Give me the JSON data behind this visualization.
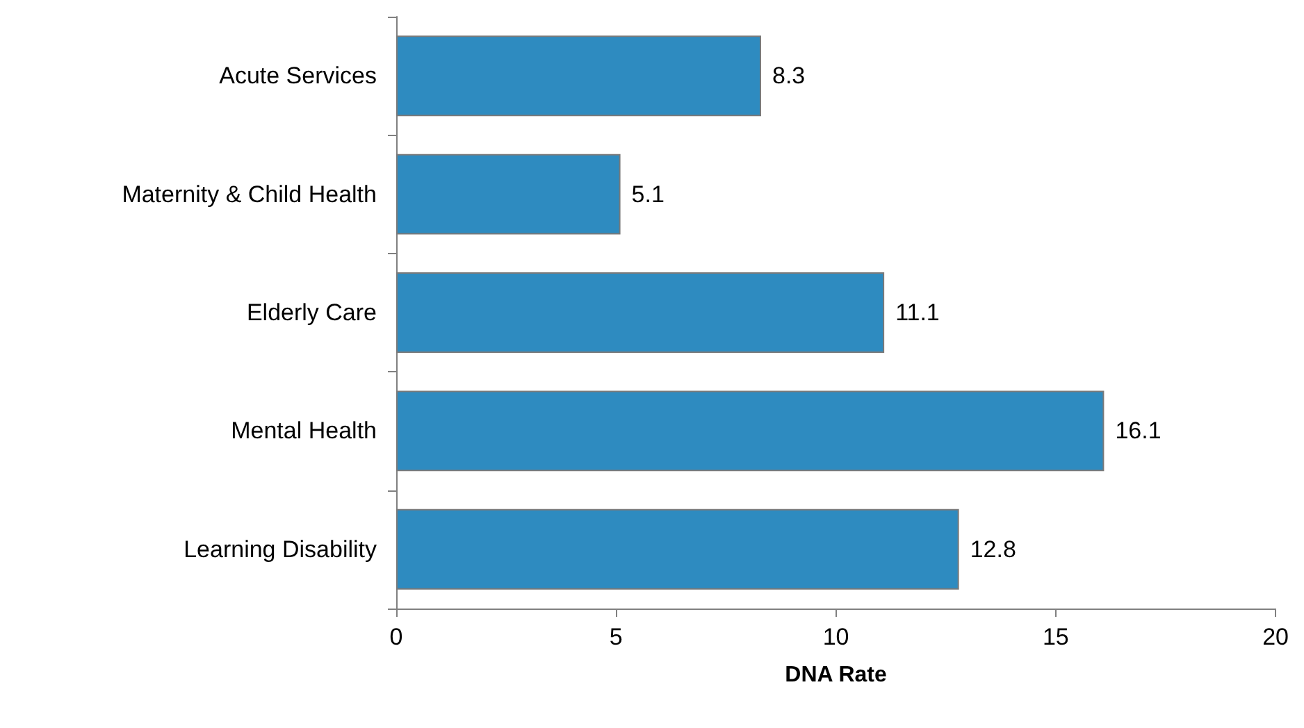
{
  "chart_data": {
    "type": "bar",
    "orientation": "horizontal",
    "xlabel": "DNA Rate",
    "categories": [
      "Acute Services",
      "Maternity & Child Health",
      "Elderly Care",
      "Mental Health",
      "Learning Disability"
    ],
    "values": [
      8.3,
      5.1,
      11.1,
      16.1,
      12.8
    ],
    "color": "#2e8bc0",
    "xlim": [
      0,
      20
    ],
    "xticks": [
      0,
      5,
      10,
      15,
      20
    ],
    "data_labels": true,
    "grid": false
  }
}
